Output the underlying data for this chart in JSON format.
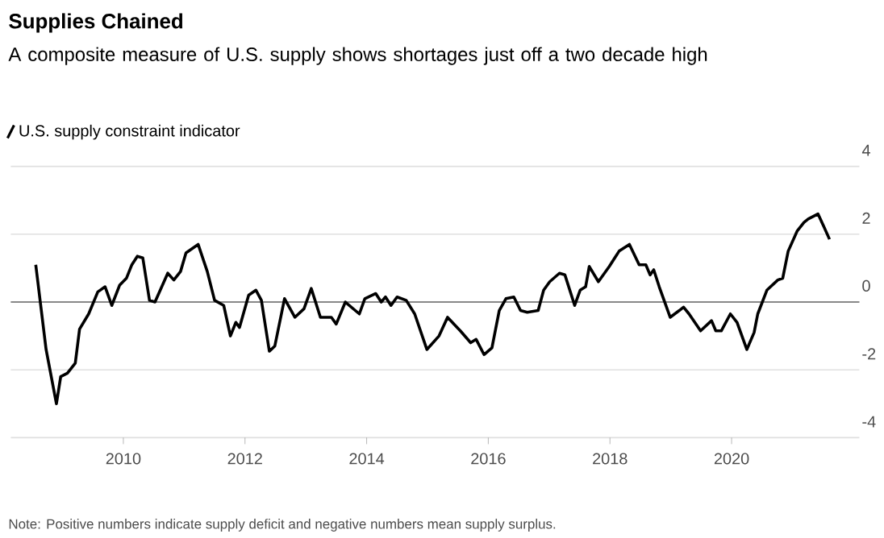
{
  "chart_data": {
    "type": "line",
    "title": "Supplies Chained",
    "subtitle": "A composite measure of U.S. supply shows shortages just off a two decade high",
    "annotations": [
      "Note: Positive numbers indicate supply deficit and negative numbers mean supply surplus."
    ],
    "xlim": [
      2008.15,
      2022.1
    ],
    "xticks": [
      2010,
      2012,
      2014,
      2016,
      2018,
      2020
    ],
    "ylim": [
      -4,
      4
    ],
    "yticks": [
      -4,
      -2,
      0,
      2,
      4
    ],
    "grid": "y",
    "legend": "top left",
    "ref_lines": [
      {
        "axis": "y",
        "value": 0,
        "color": "#888888"
      }
    ],
    "series": [
      {
        "name": "U.S. supply constraint indicator",
        "color": "#000000",
        "x": [
          2008.56,
          2008.73,
          2008.9,
          2008.97,
          2009.08,
          2009.21,
          2009.28,
          2009.43,
          2009.58,
          2009.7,
          2009.81,
          2009.94,
          2010.05,
          2010.14,
          2010.23,
          2010.32,
          2010.43,
          2010.52,
          2010.73,
          2010.83,
          2010.94,
          2011.03,
          2011.23,
          2011.38,
          2011.5,
          2011.65,
          2011.76,
          2011.85,
          2011.91,
          2012.06,
          2012.18,
          2012.27,
          2012.4,
          2012.49,
          2012.65,
          2012.82,
          2012.97,
          2013.09,
          2013.24,
          2013.42,
          2013.5,
          2013.65,
          2013.88,
          2013.97,
          2014.15,
          2014.24,
          2014.31,
          2014.4,
          2014.5,
          2014.65,
          2014.79,
          2014.99,
          2015.19,
          2015.33,
          2015.54,
          2015.71,
          2015.8,
          2015.93,
          2016.06,
          2016.18,
          2016.29,
          2016.42,
          2016.53,
          2016.64,
          2016.82,
          2016.91,
          2017.01,
          2017.17,
          2017.26,
          2017.42,
          2017.51,
          2017.6,
          2017.66,
          2017.81,
          2017.99,
          2018.15,
          2018.32,
          2018.48,
          2018.59,
          2018.66,
          2018.72,
          2018.81,
          2018.99,
          2019.14,
          2019.21,
          2019.3,
          2019.49,
          2019.67,
          2019.74,
          2019.83,
          2019.98,
          2020.09,
          2020.25,
          2020.37,
          2020.43,
          2020.58,
          2020.76,
          2020.84,
          2020.93,
          2021.08,
          2021.19,
          2021.26,
          2021.42,
          2021.51,
          2021.61
        ],
        "values": [
          1.1,
          -1.4,
          -3.0,
          -2.2,
          -2.1,
          -1.8,
          -0.8,
          -0.35,
          0.3,
          0.45,
          -0.1,
          0.5,
          0.7,
          1.1,
          1.35,
          1.3,
          0.05,
          0.0,
          0.85,
          0.65,
          0.9,
          1.45,
          1.7,
          0.9,
          0.05,
          -0.1,
          -1.0,
          -0.6,
          -0.75,
          0.2,
          0.35,
          0.05,
          -1.45,
          -1.3,
          0.1,
          -0.45,
          -0.2,
          0.4,
          -0.45,
          -0.45,
          -0.65,
          0.0,
          -0.35,
          0.1,
          0.25,
          0.0,
          0.15,
          -0.1,
          0.15,
          0.05,
          -0.35,
          -1.4,
          -1.0,
          -0.45,
          -0.85,
          -1.2,
          -1.1,
          -1.55,
          -1.35,
          -0.25,
          0.1,
          0.15,
          -0.25,
          -0.3,
          -0.25,
          0.35,
          0.6,
          0.85,
          0.8,
          -0.1,
          0.35,
          0.45,
          1.05,
          0.6,
          1.05,
          1.5,
          1.7,
          1.1,
          1.1,
          0.8,
          0.95,
          0.45,
          -0.45,
          -0.25,
          -0.15,
          -0.35,
          -0.85,
          -0.55,
          -0.85,
          -0.85,
          -0.35,
          -0.6,
          -1.4,
          -0.9,
          -0.35,
          0.35,
          0.65,
          0.7,
          1.5,
          2.1,
          2.35,
          2.45,
          2.6,
          2.25,
          1.85
        ]
      }
    ]
  }
}
